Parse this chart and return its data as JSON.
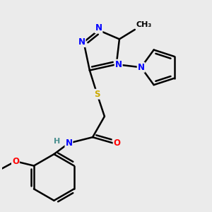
{
  "background_color": "#ebebeb",
  "atom_colors": {
    "N": "#0000ff",
    "O": "#ff0000",
    "S": "#ccaa00",
    "C": "#000000",
    "H": "#4a9090"
  },
  "bond_color": "#000000",
  "bond_width": 1.8,
  "font_size_atom": 8.5,
  "fig_w": 3.0,
  "fig_h": 3.0,
  "dpi": 100
}
